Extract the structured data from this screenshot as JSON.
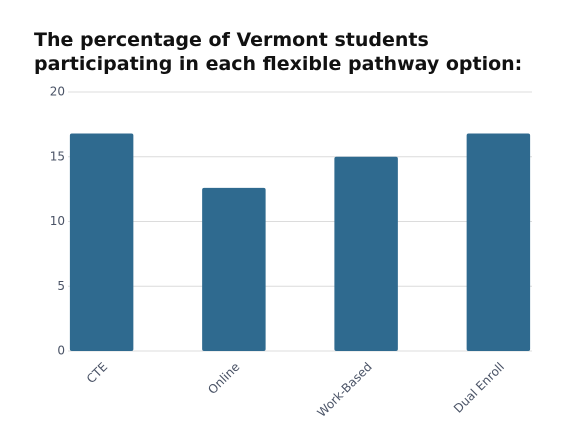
{
  "chart_data": {
    "type": "bar",
    "title": "The percentage of Vermont students participating in each flexible pathway option:",
    "categories": [
      "CTE",
      "Online",
      "Work-Based",
      "Dual Enroll"
    ],
    "values": [
      16.8,
      12.6,
      15,
      16.8
    ],
    "color": "#2f6a8f",
    "ylim": [
      0,
      20
    ],
    "yticks": [
      0,
      5,
      10,
      15,
      20
    ],
    "grid": true
  }
}
